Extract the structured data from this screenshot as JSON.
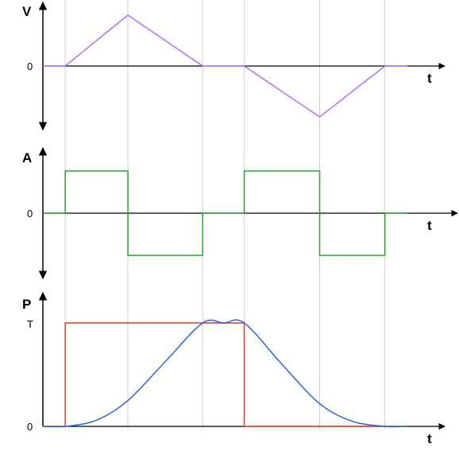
{
  "chart_data": [
    {
      "type": "line",
      "ylabel": "V",
      "xlabel": "t",
      "x_breaks": [
        0,
        1,
        2,
        3,
        4,
        5,
        6
      ],
      "y_ticks": [
        "0"
      ],
      "series": [
        {
          "color": "#b26ff5",
          "x": [
            0,
            0.35,
            1.33,
            2.5,
            3.15,
            4.33,
            5.35,
            5.7
          ],
          "y": [
            0,
            0,
            1,
            0,
            0,
            -1,
            0,
            0
          ]
        }
      ]
    },
    {
      "type": "line",
      "ylabel": "A",
      "xlabel": "t",
      "y_ticks": [
        "0"
      ],
      "series": [
        {
          "color": "#2aa32a",
          "x": [
            0,
            0.35,
            0.35,
            1.33,
            1.33,
            2.5,
            2.5,
            3.15,
            3.15,
            4.33,
            4.33,
            5.35,
            5.35,
            5.7
          ],
          "y": [
            0,
            0,
            1,
            1,
            -1,
            -1,
            0,
            0,
            1,
            1,
            -1,
            -1,
            0,
            0
          ]
        }
      ]
    },
    {
      "type": "line",
      "ylabel": "P",
      "xlabel": "t",
      "y_ticks": [
        "0",
        "T"
      ],
      "series": [
        {
          "color": "#e33b20",
          "x": [
            0,
            0.35,
            0.35,
            3.15,
            3.15,
            5.7
          ],
          "y": [
            0,
            0,
            1,
            1,
            0,
            0
          ]
        },
        {
          "color": "#2a63e6",
          "x": [
            0,
            0.35,
            0.84,
            1.33,
            1.92,
            2.5,
            2.83,
            3.15,
            3.74,
            4.33,
            4.84,
            5.35,
            5.7
          ],
          "y": [
            0,
            0,
            0.06,
            0.25,
            0.63,
            1,
            1,
            1,
            0.6,
            0.22,
            0.05,
            0,
            0
          ]
        }
      ]
    }
  ]
}
